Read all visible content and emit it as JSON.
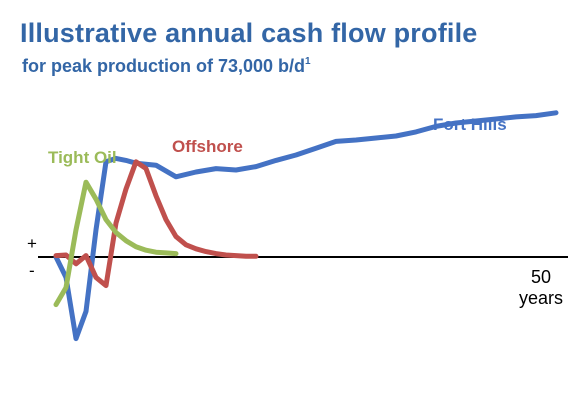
{
  "header": {
    "title": "Illustrative annual cash flow profile",
    "subtitle": "for peak production of 73,000 b/d",
    "subtitle_footnote": "1"
  },
  "chart_data": {
    "type": "line",
    "title": "Illustrative annual cash flow profile",
    "subtitle": "for peak production of 73,000 b/d",
    "xlabel": "years",
    "ylabel": "",
    "x_ticks": [
      50
    ],
    "x_tick_labels": [
      "50"
    ],
    "xlim": [
      0,
      50
    ],
    "sign_labels": {
      "positive": "+",
      "negative": "-"
    },
    "grid": false,
    "legend": "series labels placed directly on the chart",
    "series": [
      {
        "name": "Fort Hills",
        "color": "#4472c4",
        "x": [
          0,
          1,
          2,
          3,
          4,
          5,
          6,
          7,
          8,
          10,
          12,
          14,
          16,
          18,
          20,
          22,
          24,
          26,
          28,
          30,
          32,
          34,
          36,
          38,
          40,
          42,
          44,
          46,
          48,
          50
        ],
        "y": [
          0,
          -0.3,
          -1.2,
          -0.8,
          0.4,
          1.4,
          1.45,
          1.42,
          1.38,
          1.35,
          1.18,
          1.25,
          1.3,
          1.28,
          1.33,
          1.42,
          1.5,
          1.6,
          1.7,
          1.72,
          1.75,
          1.78,
          1.84,
          1.92,
          1.97,
          2.0,
          2.03,
          2.06,
          2.08,
          2.12
        ],
        "y_label_note": ""
      },
      {
        "name": "Offshore",
        "color": "#c0504d",
        "x": [
          0,
          1,
          2,
          3,
          4,
          5,
          6,
          7,
          8,
          9,
          10,
          11,
          12,
          13,
          14,
          15,
          16,
          17,
          18,
          19,
          20
        ],
        "y": [
          0.02,
          0.03,
          -0.1,
          0.02,
          -0.3,
          -0.42,
          0.5,
          1.0,
          1.4,
          1.3,
          0.9,
          0.55,
          0.3,
          0.18,
          0.12,
          0.08,
          0.05,
          0.03,
          0.02,
          0.01,
          0.01
        ]
      },
      {
        "name": "Tight Oil",
        "color": "#9bbb59",
        "x": [
          0,
          1,
          2,
          3,
          4,
          5,
          6,
          7,
          8,
          9,
          10,
          11,
          12
        ],
        "y": [
          -0.7,
          -0.45,
          0.4,
          1.1,
          0.85,
          0.55,
          0.36,
          0.24,
          0.15,
          0.1,
          0.07,
          0.06,
          0.05
        ]
      }
    ]
  }
}
